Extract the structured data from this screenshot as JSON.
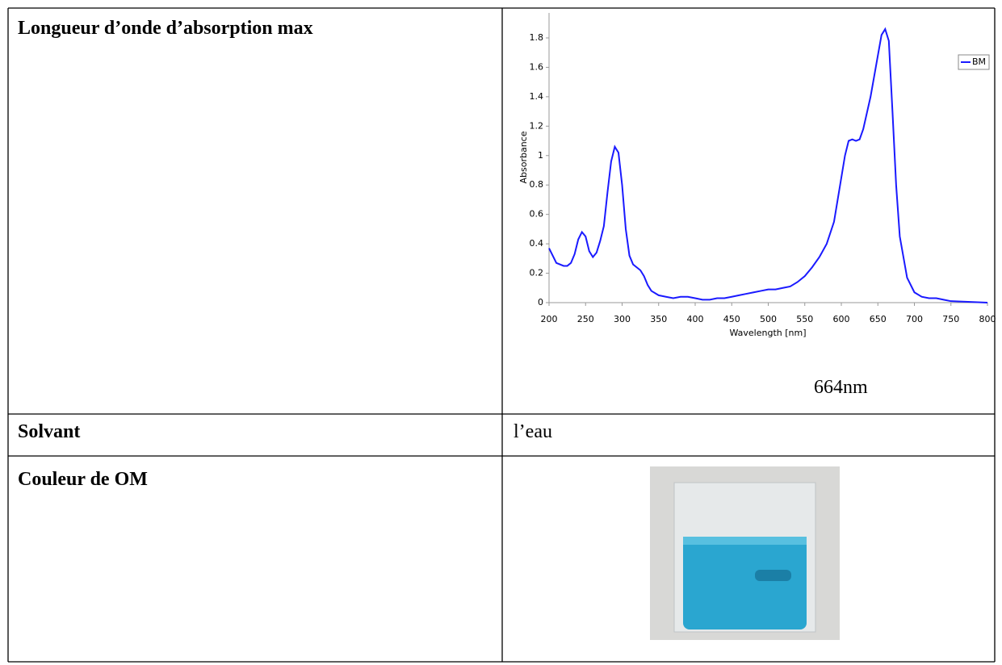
{
  "table": {
    "rows": [
      [
        "Longueur d’onde d’absorption max"
      ],
      [
        "Solvant",
        "l’eau"
      ],
      [
        "Couleur de OM"
      ]
    ]
  },
  "chart_data": {
    "type": "line",
    "x_label": "Wavelength [nm]",
    "y_label": "Absorbance",
    "annotation": "664nm",
    "x": [
      200,
      205,
      210,
      220,
      225,
      230,
      235,
      240,
      245,
      250,
      255,
      260,
      265,
      270,
      275,
      280,
      285,
      290,
      295,
      300,
      305,
      310,
      315,
      320,
      325,
      330,
      335,
      340,
      350,
      360,
      370,
      380,
      390,
      400,
      410,
      420,
      430,
      440,
      450,
      460,
      470,
      480,
      490,
      500,
      510,
      520,
      530,
      540,
      550,
      560,
      570,
      580,
      590,
      600,
      605,
      610,
      615,
      620,
      625,
      630,
      640,
      650,
      655,
      660,
      665,
      670,
      675,
      680,
      690,
      700,
      710,
      720,
      730,
      740,
      750,
      800
    ],
    "series": [
      {
        "name": "BM",
        "color": "#1a1aff",
        "values": [
          0.37,
          0.32,
          0.27,
          0.25,
          0.25,
          0.27,
          0.33,
          0.43,
          0.48,
          0.45,
          0.35,
          0.31,
          0.34,
          0.42,
          0.52,
          0.75,
          0.96,
          1.06,
          1.02,
          0.8,
          0.5,
          0.32,
          0.26,
          0.24,
          0.22,
          0.18,
          0.12,
          0.08,
          0.05,
          0.04,
          0.03,
          0.04,
          0.04,
          0.03,
          0.02,
          0.02,
          0.03,
          0.03,
          0.04,
          0.05,
          0.06,
          0.07,
          0.08,
          0.09,
          0.09,
          0.1,
          0.11,
          0.14,
          0.18,
          0.24,
          0.31,
          0.4,
          0.55,
          0.85,
          1.0,
          1.1,
          1.11,
          1.1,
          1.11,
          1.18,
          1.4,
          1.68,
          1.82,
          1.86,
          1.78,
          1.3,
          0.8,
          0.45,
          0.17,
          0.07,
          0.04,
          0.03,
          0.03,
          0.02,
          0.01,
          0.0
        ]
      }
    ],
    "xlim": [
      200,
      800
    ],
    "ylim": [
      0,
      1.97
    ],
    "xticks": [
      200,
      250,
      300,
      350,
      400,
      450,
      500,
      550,
      600,
      650,
      700,
      750,
      800
    ],
    "yticks": [
      0,
      0.2,
      0.4,
      0.6,
      0.8,
      1,
      1.2,
      1.4,
      1.6,
      1.8
    ],
    "legend": "top-right"
  }
}
